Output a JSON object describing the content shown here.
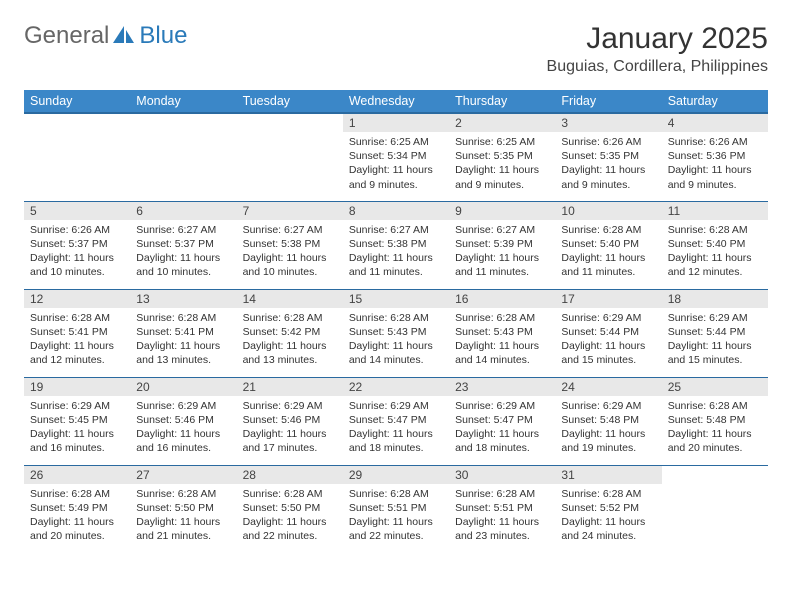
{
  "brand": {
    "word1": "General",
    "word2": "Blue",
    "logo_fill": "#2a7ab9"
  },
  "title": "January 2025",
  "location": "Buguias, Cordillera, Philippines",
  "colors": {
    "header_bg": "#3b87c8",
    "header_border": "#2a6aa0",
    "daynum_bg": "#e8e8e8",
    "text": "#333333"
  },
  "weekdays": [
    "Sunday",
    "Monday",
    "Tuesday",
    "Wednesday",
    "Thursday",
    "Friday",
    "Saturday"
  ],
  "weeks": [
    [
      null,
      null,
      null,
      {
        "n": "1",
        "sr": "6:25 AM",
        "ss": "5:34 PM",
        "dl": "11 hours and 9 minutes."
      },
      {
        "n": "2",
        "sr": "6:25 AM",
        "ss": "5:35 PM",
        "dl": "11 hours and 9 minutes."
      },
      {
        "n": "3",
        "sr": "6:26 AM",
        "ss": "5:35 PM",
        "dl": "11 hours and 9 minutes."
      },
      {
        "n": "4",
        "sr": "6:26 AM",
        "ss": "5:36 PM",
        "dl": "11 hours and 9 minutes."
      }
    ],
    [
      {
        "n": "5",
        "sr": "6:26 AM",
        "ss": "5:37 PM",
        "dl": "11 hours and 10 minutes."
      },
      {
        "n": "6",
        "sr": "6:27 AM",
        "ss": "5:37 PM",
        "dl": "11 hours and 10 minutes."
      },
      {
        "n": "7",
        "sr": "6:27 AM",
        "ss": "5:38 PM",
        "dl": "11 hours and 10 minutes."
      },
      {
        "n": "8",
        "sr": "6:27 AM",
        "ss": "5:38 PM",
        "dl": "11 hours and 11 minutes."
      },
      {
        "n": "9",
        "sr": "6:27 AM",
        "ss": "5:39 PM",
        "dl": "11 hours and 11 minutes."
      },
      {
        "n": "10",
        "sr": "6:28 AM",
        "ss": "5:40 PM",
        "dl": "11 hours and 11 minutes."
      },
      {
        "n": "11",
        "sr": "6:28 AM",
        "ss": "5:40 PM",
        "dl": "11 hours and 12 minutes."
      }
    ],
    [
      {
        "n": "12",
        "sr": "6:28 AM",
        "ss": "5:41 PM",
        "dl": "11 hours and 12 minutes."
      },
      {
        "n": "13",
        "sr": "6:28 AM",
        "ss": "5:41 PM",
        "dl": "11 hours and 13 minutes."
      },
      {
        "n": "14",
        "sr": "6:28 AM",
        "ss": "5:42 PM",
        "dl": "11 hours and 13 minutes."
      },
      {
        "n": "15",
        "sr": "6:28 AM",
        "ss": "5:43 PM",
        "dl": "11 hours and 14 minutes."
      },
      {
        "n": "16",
        "sr": "6:28 AM",
        "ss": "5:43 PM",
        "dl": "11 hours and 14 minutes."
      },
      {
        "n": "17",
        "sr": "6:29 AM",
        "ss": "5:44 PM",
        "dl": "11 hours and 15 minutes."
      },
      {
        "n": "18",
        "sr": "6:29 AM",
        "ss": "5:44 PM",
        "dl": "11 hours and 15 minutes."
      }
    ],
    [
      {
        "n": "19",
        "sr": "6:29 AM",
        "ss": "5:45 PM",
        "dl": "11 hours and 16 minutes."
      },
      {
        "n": "20",
        "sr": "6:29 AM",
        "ss": "5:46 PM",
        "dl": "11 hours and 16 minutes."
      },
      {
        "n": "21",
        "sr": "6:29 AM",
        "ss": "5:46 PM",
        "dl": "11 hours and 17 minutes."
      },
      {
        "n": "22",
        "sr": "6:29 AM",
        "ss": "5:47 PM",
        "dl": "11 hours and 18 minutes."
      },
      {
        "n": "23",
        "sr": "6:29 AM",
        "ss": "5:47 PM",
        "dl": "11 hours and 18 minutes."
      },
      {
        "n": "24",
        "sr": "6:29 AM",
        "ss": "5:48 PM",
        "dl": "11 hours and 19 minutes."
      },
      {
        "n": "25",
        "sr": "6:28 AM",
        "ss": "5:48 PM",
        "dl": "11 hours and 20 minutes."
      }
    ],
    [
      {
        "n": "26",
        "sr": "6:28 AM",
        "ss": "5:49 PM",
        "dl": "11 hours and 20 minutes."
      },
      {
        "n": "27",
        "sr": "6:28 AM",
        "ss": "5:50 PM",
        "dl": "11 hours and 21 minutes."
      },
      {
        "n": "28",
        "sr": "6:28 AM",
        "ss": "5:50 PM",
        "dl": "11 hours and 22 minutes."
      },
      {
        "n": "29",
        "sr": "6:28 AM",
        "ss": "5:51 PM",
        "dl": "11 hours and 22 minutes."
      },
      {
        "n": "30",
        "sr": "6:28 AM",
        "ss": "5:51 PM",
        "dl": "11 hours and 23 minutes."
      },
      {
        "n": "31",
        "sr": "6:28 AM",
        "ss": "5:52 PM",
        "dl": "11 hours and 24 minutes."
      },
      null
    ]
  ],
  "labels": {
    "sunrise": "Sunrise:",
    "sunset": "Sunset:",
    "daylight": "Daylight:"
  }
}
